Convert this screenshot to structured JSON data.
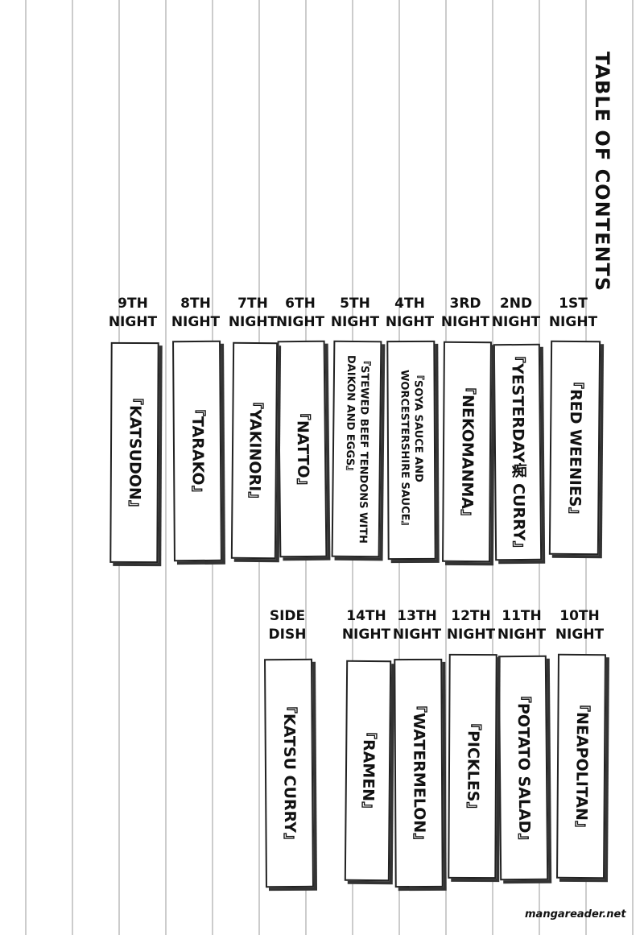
{
  "title": "TABLE OF CONTENTS",
  "rows": [
    [
      {
        "label": [
          "1ST",
          "NIGHT"
        ],
        "title": [
          "『RED WEENIES』"
        ]
      },
      {
        "label": [
          "2ND",
          "NIGHT"
        ],
        "title": [
          "『YESTERDAY痴 CURRY』"
        ]
      },
      {
        "label": [
          "3RD",
          "NIGHT"
        ],
        "title": [
          "『NEKOMANMA』"
        ]
      },
      {
        "label": [
          "4TH",
          "NIGHT"
        ],
        "title": [
          "『SOYA SAUCE AND",
          "WORCESTERSHIRE SAUCE』"
        ]
      },
      {
        "label": [
          "5TH",
          "NIGHT"
        ],
        "title": [
          "『STEWED BEEF TENDONS WITH",
          "DAIKON AND EGGS』"
        ]
      },
      {
        "label": [
          "6TH",
          "NIGHT"
        ],
        "title": [
          "『NATTO』"
        ]
      },
      {
        "label": [
          "7TH",
          "NIGHT"
        ],
        "title": [
          "『YAKINORI』"
        ]
      },
      {
        "label": [
          "8TH",
          "NIGHT"
        ],
        "title": [
          "『TARAKO』"
        ]
      },
      {
        "label": [
          "9TH",
          "NIGHT"
        ],
        "title": [
          "『KATSUDON』"
        ]
      }
    ],
    [
      {
        "label": [
          "10TH",
          "NIGHT"
        ],
        "title": [
          "『NEAPOLITAN』"
        ]
      },
      {
        "label": [
          "11TH",
          "NIGHT"
        ],
        "title": [
          "『POTATO SALAD』"
        ]
      },
      {
        "label": [
          "12TH",
          "NIGHT"
        ],
        "title": [
          "『PICKLES』"
        ]
      },
      {
        "label": [
          "13TH",
          "NIGHT"
        ],
        "title": [
          "『WATERMELON』"
        ]
      },
      {
        "label": [
          "14TH",
          "NIGHT"
        ],
        "title": [
          "『RAMEN』"
        ]
      },
      {
        "label": [
          "SIDE",
          "DISH"
        ],
        "title": [
          "『KATSU CURRY』"
        ]
      }
    ]
  ],
  "watermark": "mangareader.net"
}
